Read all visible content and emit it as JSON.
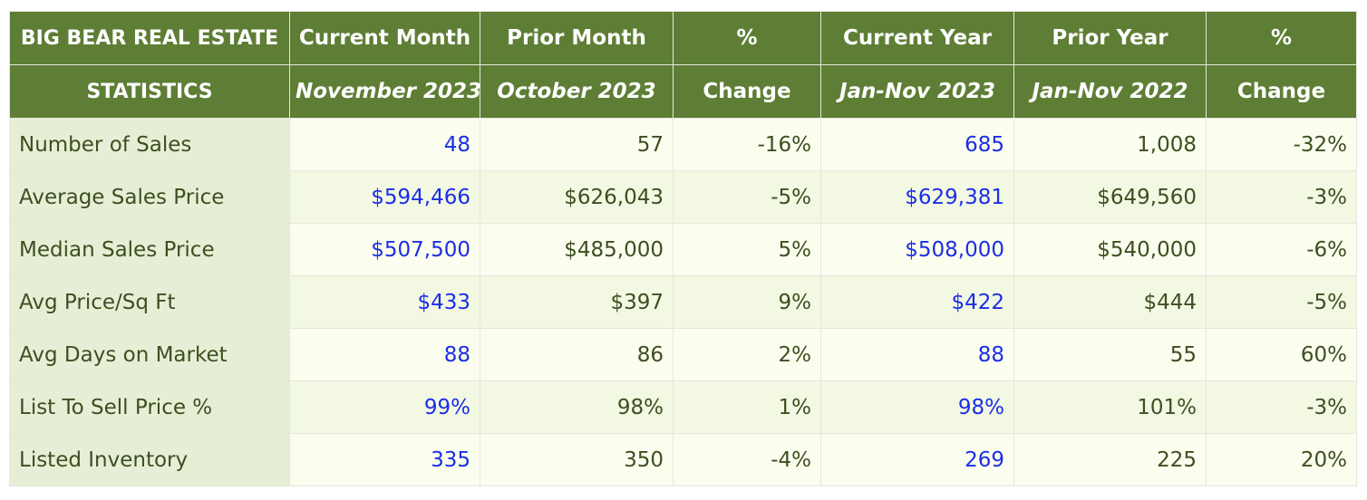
{
  "header": {
    "title_line1": "BIG BEAR REAL ESTATE",
    "title_line2": "STATISTICS",
    "columns": [
      {
        "line1": "Current Month",
        "line2": "November 2023"
      },
      {
        "line1": "Prior Month",
        "line2": "October 2023"
      },
      {
        "line1": "%",
        "line2": "Change"
      },
      {
        "line1": "Current Year",
        "line2": "Jan-Nov 2023"
      },
      {
        "line1": "Prior Year",
        "line2": "Jan-Nov 2022"
      },
      {
        "line1": "%",
        "line2": "Change"
      }
    ]
  },
  "rows": [
    {
      "label": "Number of Sales",
      "values": [
        "48",
        "57",
        "-16%",
        "685",
        "1,008",
        "-32%"
      ]
    },
    {
      "label": "Average Sales Price",
      "values": [
        "$594,466",
        "$626,043",
        "-5%",
        "$629,381",
        "$649,560",
        "-3%"
      ]
    },
    {
      "label": "Median Sales Price",
      "values": [
        "$507,500",
        "$485,000",
        "5%",
        "$508,000",
        "$540,000",
        "-6%"
      ]
    },
    {
      "label": "Avg Price/Sq Ft",
      "values": [
        "$433",
        "$397",
        "9%",
        "$422",
        "$444",
        "-5%"
      ]
    },
    {
      "label": "Avg Days on Market",
      "values": [
        "88",
        "86",
        "2%",
        "88",
        "55",
        "60%"
      ]
    },
    {
      "label": "List To Sell Price %",
      "values": [
        "99%",
        "98%",
        "1%",
        "98%",
        "101%",
        "-3%"
      ]
    },
    {
      "label": "Listed Inventory",
      "values": [
        "335",
        "350",
        "-4%",
        "269",
        "225",
        "20%"
      ]
    }
  ],
  "colors": {
    "header_bg": "#5e7e35",
    "label_bg": "#e6efd6",
    "current_value_text": "#1b2ee6",
    "default_text": "#3d4f20"
  }
}
